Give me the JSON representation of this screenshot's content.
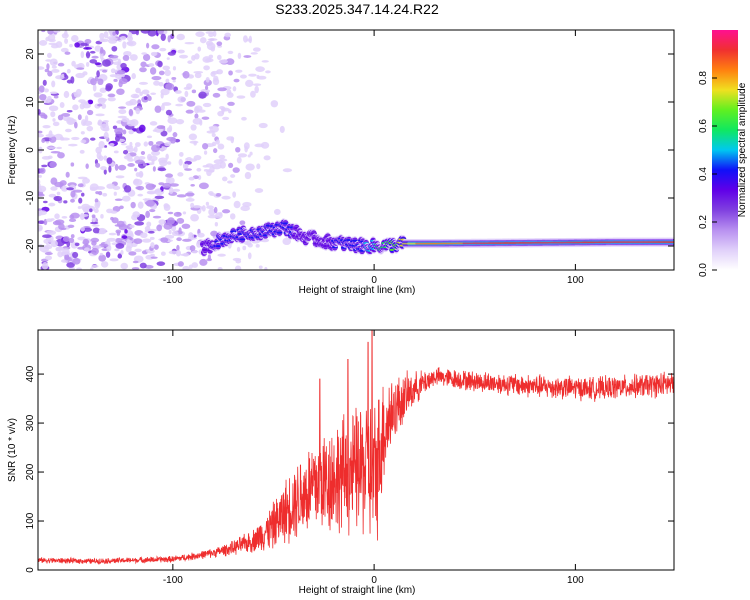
{
  "title": "S233.2025.347.14.24.R22",
  "colors": {
    "snr_line": "#ee2d2d",
    "frame": "#000000",
    "colormap": [
      "#ffffff",
      "#e0d0fa",
      "#b890f0",
      "#8040e0",
      "#6000e8",
      "#1010f8",
      "#00c8f0",
      "#10e860",
      "#60f020",
      "#f0e020",
      "#ff8010",
      "#f03030",
      "#ff1090"
    ]
  },
  "chart_data": [
    {
      "type": "heatmap",
      "name": "spectrogram",
      "title": "S233.2025.347.14.24.R22",
      "xlabel": "Height of straight line (km)",
      "ylabel": "Frequency (Hz)",
      "xlim": [
        -167,
        149
      ],
      "ylim": [
        -25,
        25
      ],
      "xticks": [
        -100,
        0,
        100
      ],
      "xtick_labels": [
        "-100",
        "0",
        "100"
      ],
      "yticks": [
        -20,
        -10,
        0,
        10,
        20
      ],
      "ytick_labels": [
        "-20",
        "-10",
        "0",
        "10",
        "20"
      ],
      "colorbar": {
        "label": "Normalized spectral amplitude",
        "range": [
          0,
          1
        ],
        "ticks": [
          0.0,
          0.2,
          0.4,
          0.6,
          0.8
        ],
        "tick_labels": [
          "0.0",
          "0.2",
          "0.4",
          "0.6",
          "0.8"
        ]
      },
      "ridge": {
        "description": "strong narrowband signal near -19 Hz",
        "x": [
          -85,
          -75,
          -65,
          -55,
          -45,
          -35,
          -25,
          -15,
          -5,
          5,
          15,
          30,
          60,
          90,
          120,
          149
        ],
        "freq": [
          -20.5,
          -18.5,
          -17.5,
          -17,
          -16,
          -18,
          -19,
          -19.5,
          -20,
          -20,
          -19.5,
          -19.5,
          -19.4,
          -19.3,
          -19.2,
          -19.2
        ],
        "amplitude": [
          0.35,
          0.4,
          0.45,
          0.45,
          0.4,
          0.35,
          0.35,
          0.4,
          0.45,
          0.6,
          0.75,
          0.85,
          0.9,
          0.9,
          0.9,
          0.9
        ]
      },
      "noise_region": {
        "x_from": -167,
        "x_to": -75,
        "amplitude": 0.1
      }
    },
    {
      "type": "line",
      "name": "snr",
      "xlabel": "Height of straight line (km)",
      "ylabel": "SNR (10 * v/v)",
      "xlim": [
        -167,
        149
      ],
      "ylim": [
        0,
        490
      ],
      "xticks": [
        -100,
        0,
        100
      ],
      "xtick_labels": [
        "-100",
        "0",
        "100"
      ],
      "yticks": [
        0,
        100,
        200,
        300,
        400
      ],
      "ytick_labels": [
        "0",
        "100",
        "200",
        "300",
        "400"
      ],
      "series": [
        {
          "name": "SNR",
          "x": [
            -167,
            -140,
            -120,
            -100,
            -90,
            -80,
            -70,
            -60,
            -50,
            -40,
            -30,
            -20,
            -10,
            -5,
            0,
            5,
            10,
            20,
            30,
            50,
            80,
            110,
            130,
            149
          ],
          "y": [
            20,
            18,
            20,
            22,
            28,
            35,
            45,
            60,
            90,
            140,
            170,
            190,
            200,
            210,
            180,
            290,
            330,
            370,
            395,
            385,
            375,
            370,
            375,
            380
          ],
          "noise": [
            6,
            6,
            6,
            7,
            8,
            10,
            15,
            25,
            50,
            80,
            110,
            120,
            130,
            150,
            170,
            120,
            70,
            35,
            20,
            22,
            25,
            25,
            25,
            28
          ],
          "spikes": [
            {
              "x": -1,
              "y": 490
            },
            {
              "x": -3,
              "y": 465
            },
            {
              "x": -13,
              "y": 430
            },
            {
              "x": -27,
              "y": 390
            }
          ]
        }
      ]
    }
  ]
}
